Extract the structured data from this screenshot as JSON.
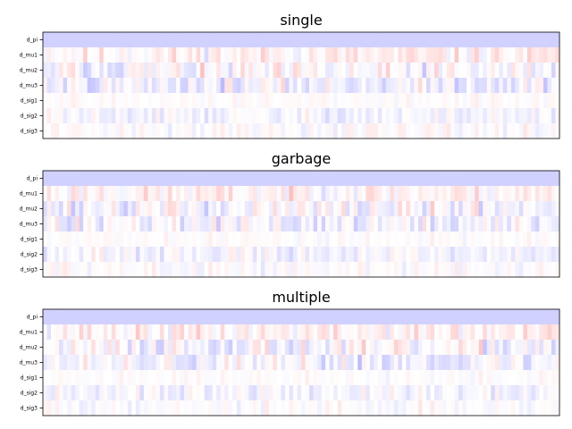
{
  "chart_data": [
    {
      "type": "heatmap",
      "title": "single",
      "rows": [
        "d_pi",
        "d_mu1",
        "d_mu2",
        "d_mu3",
        "d_sig1",
        "d_sig2",
        "d_sig3"
      ],
      "n_columns": 128,
      "colormap": "bwr",
      "value_range": [
        -1,
        1
      ],
      "xticks": false,
      "seed": 11
    },
    {
      "type": "heatmap",
      "title": "garbage",
      "rows": [
        "d_pi",
        "d_mu1",
        "d_mu2",
        "d_mu3",
        "d_sig1",
        "d_sig2",
        "d_sig3"
      ],
      "n_columns": 128,
      "colormap": "bwr",
      "value_range": [
        -1,
        1
      ],
      "xticks": false,
      "seed": 23
    },
    {
      "type": "heatmap",
      "title": "multiple",
      "rows": [
        "d_pi",
        "d_mu1",
        "d_mu2",
        "d_mu3",
        "d_sig1",
        "d_sig2",
        "d_sig3"
      ],
      "n_columns": 128,
      "colormap": "bwr",
      "value_range": [
        -1,
        1
      ],
      "xticks": false,
      "seed": 37
    }
  ],
  "row_profiles": {
    "d_pi": {
      "const": -0.18
    },
    "d_mu1": {
      "mean": 0.05,
      "spread": 0.22
    },
    "d_mu2": {
      "mean": -0.02,
      "spread": 0.28
    },
    "d_mu3": {
      "mean": -0.05,
      "spread": 0.25
    },
    "d_sig1": {
      "mean": 0.01,
      "spread": 0.08
    },
    "d_sig2": {
      "mean": -0.04,
      "spread": 0.16
    },
    "d_sig3": {
      "mean": 0.0,
      "spread": 0.12
    }
  }
}
